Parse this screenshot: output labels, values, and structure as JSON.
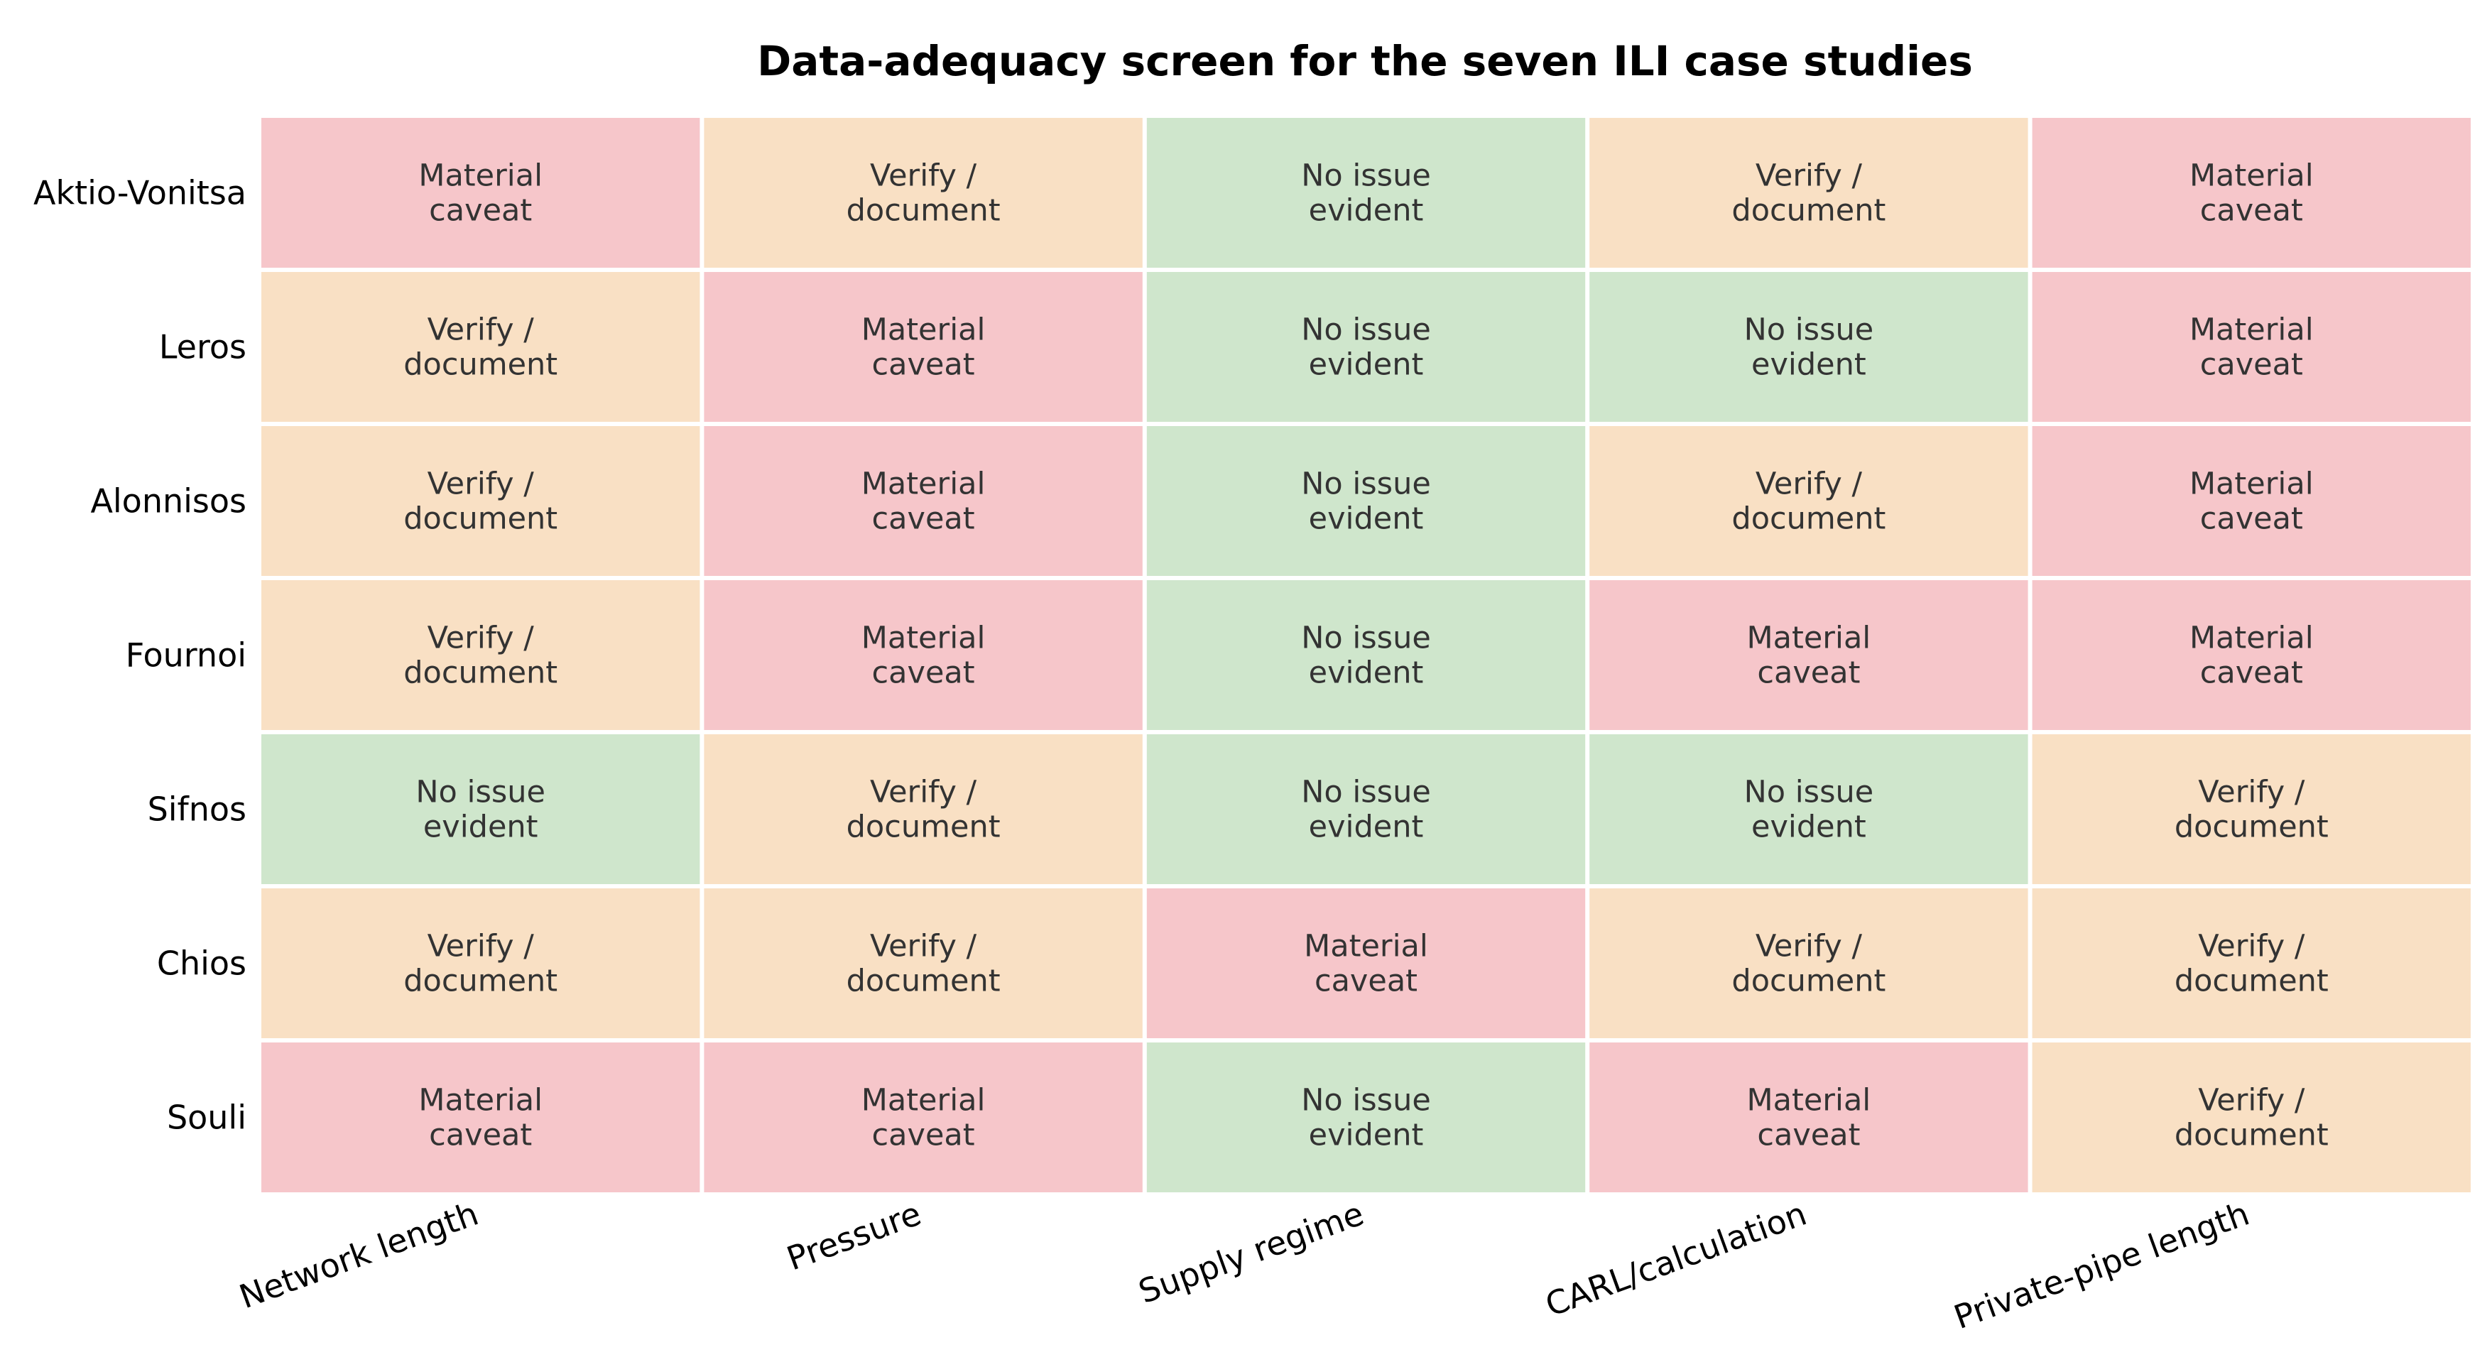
{
  "chart_data": {
    "type": "heatmap",
    "title": "Data-adequacy screen for the seven ILI case studies",
    "rows": [
      "Aktio-Vonitsa",
      "Leros",
      "Alonnisos",
      "Fournoi",
      "Sifnos",
      "Chios",
      "Souli"
    ],
    "columns": [
      "Network length",
      "Pressure",
      "Supply regime",
      "CARL/calculation",
      "Private-pipe length"
    ],
    "categories": {
      "material": {
        "lines": [
          "Material",
          "caveat"
        ],
        "color": "#f6c6ca"
      },
      "verify": {
        "lines": [
          "Verify /",
          "document"
        ],
        "color": "#f9e0c4"
      },
      "none": {
        "lines": [
          "No issue",
          "evident"
        ],
        "color": "#cfe6cc"
      }
    },
    "values": [
      [
        "material",
        "verify",
        "none",
        "verify",
        "material"
      ],
      [
        "verify",
        "material",
        "none",
        "none",
        "material"
      ],
      [
        "verify",
        "material",
        "none",
        "verify",
        "material"
      ],
      [
        "verify",
        "material",
        "none",
        "material",
        "material"
      ],
      [
        "none",
        "verify",
        "none",
        "none",
        "verify"
      ],
      [
        "verify",
        "verify",
        "material",
        "verify",
        "verify"
      ],
      [
        "material",
        "material",
        "none",
        "material",
        "verify"
      ]
    ]
  }
}
